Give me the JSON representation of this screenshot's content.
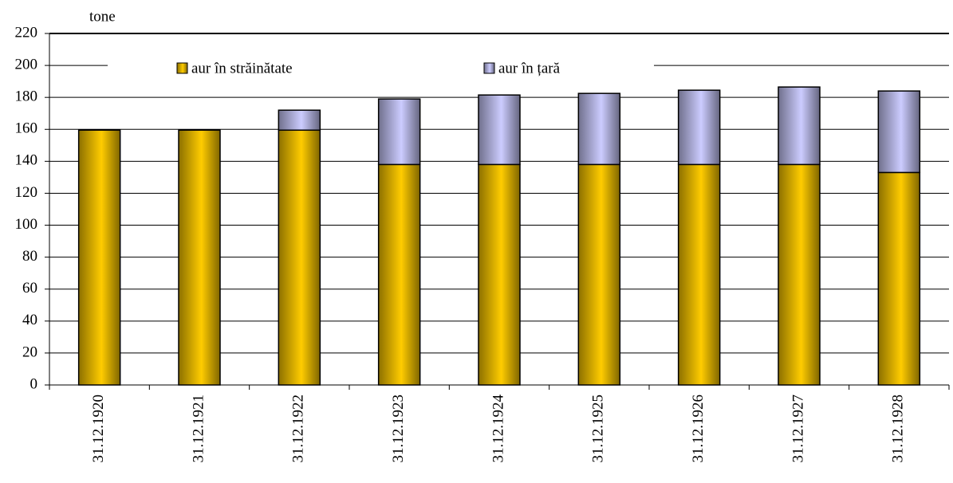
{
  "chart_data": {
    "type": "stacked-bar",
    "y_label": "tone",
    "categories": [
      "31.12.1920",
      "31.12.1921",
      "31.12.1922",
      "31.12.1923",
      "31.12.1924",
      "31.12.1925",
      "31.12.1926",
      "31.12.1927",
      "31.12.1928"
    ],
    "series": [
      {
        "name": "aur în străinătate",
        "color": "#ffcc00",
        "values": [
          159.5,
          159.5,
          159.5,
          138,
          138,
          138,
          138,
          138,
          133
        ]
      },
      {
        "name": "aur în țară",
        "color": "#ccccff",
        "values": [
          0,
          0,
          12.5,
          41,
          43.5,
          44.5,
          46.5,
          48.5,
          51
        ]
      }
    ],
    "ylim": [
      0,
      220
    ],
    "yticks": [
      0,
      20,
      40,
      60,
      80,
      100,
      120,
      140,
      160,
      180,
      200,
      220
    ],
    "grid": true
  }
}
